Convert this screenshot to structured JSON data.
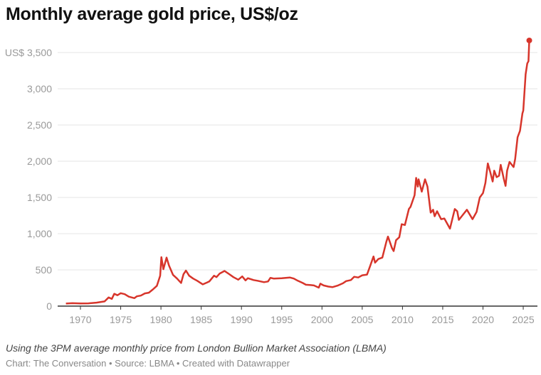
{
  "title": "Monthly average gold price, US$/oz",
  "footer": {
    "note": "Using the 3PM average monthly price from London Bullion Market Association (LBMA)",
    "source": "Chart: The Conversation • Source: LBMA • Created with Datawrapper"
  },
  "colors": {
    "line": "#d7352b",
    "grid": "#e6e6e6",
    "axis": "#333333",
    "tick_text": "#999999"
  },
  "chart_data": {
    "type": "line",
    "title": "Monthly average gold price, US$/oz",
    "xlabel": "",
    "ylabel": "",
    "ylim": [
      0,
      3500
    ],
    "xlim": [
      1968,
      2026
    ],
    "grid": true,
    "y_ticks": [
      0,
      500,
      1000,
      1500,
      2000,
      2500,
      3000,
      3500
    ],
    "y_tick_labels": [
      "0",
      "500",
      "1,000",
      "1,500",
      "2,000",
      "2,500",
      "3,000",
      "US$ 3,500"
    ],
    "x_ticks": [
      1970,
      1975,
      1980,
      1985,
      1990,
      1995,
      2000,
      2005,
      2010,
      2015,
      2020,
      2025
    ],
    "x_tick_labels": [
      "1970",
      "1975",
      "1980",
      "1985",
      "1990",
      "1995",
      "2000",
      "2005",
      "2010",
      "2015",
      "2020",
      "2025"
    ],
    "end_marker": true,
    "points": [
      [
        1968.2,
        35
      ],
      [
        1969,
        40
      ],
      [
        1970,
        36
      ],
      [
        1971,
        38
      ],
      [
        1972,
        48
      ],
      [
        1973,
        65
      ],
      [
        1973.5,
        120
      ],
      [
        1973.9,
        100
      ],
      [
        1974.2,
        170
      ],
      [
        1974.6,
        150
      ],
      [
        1975,
        178
      ],
      [
        1975.5,
        165
      ],
      [
        1976,
        130
      ],
      [
        1976.7,
        110
      ],
      [
        1977,
        135
      ],
      [
        1977.5,
        145
      ],
      [
        1978,
        175
      ],
      [
        1978.5,
        185
      ],
      [
        1979,
        230
      ],
      [
        1979.5,
        280
      ],
      [
        1979.9,
        420
      ],
      [
        1980.05,
        675
      ],
      [
        1980.3,
        510
      ],
      [
        1980.7,
        670
      ],
      [
        1981,
        560
      ],
      [
        1981.5,
        430
      ],
      [
        1982,
        380
      ],
      [
        1982.5,
        320
      ],
      [
        1982.8,
        440
      ],
      [
        1983.1,
        490
      ],
      [
        1983.5,
        420
      ],
      [
        1984,
        380
      ],
      [
        1984.5,
        350
      ],
      [
        1985.2,
        300
      ],
      [
        1985.7,
        325
      ],
      [
        1986,
        340
      ],
      [
        1986.6,
        420
      ],
      [
        1986.9,
        400
      ],
      [
        1987.3,
        450
      ],
      [
        1987.9,
        485
      ],
      [
        1988.5,
        440
      ],
      [
        1989,
        400
      ],
      [
        1989.6,
        365
      ],
      [
        1990.1,
        410
      ],
      [
        1990.5,
        355
      ],
      [
        1990.8,
        385
      ],
      [
        1991.5,
        360
      ],
      [
        1992,
        350
      ],
      [
        1992.8,
        330
      ],
      [
        1993.3,
        340
      ],
      [
        1993.6,
        390
      ],
      [
        1994,
        380
      ],
      [
        1995,
        385
      ],
      [
        1996,
        395
      ],
      [
        1996.5,
        380
      ],
      [
        1997,
        350
      ],
      [
        1997.6,
        320
      ],
      [
        1998,
        295
      ],
      [
        1998.6,
        290
      ],
      [
        1999,
        285
      ],
      [
        1999.6,
        255
      ],
      [
        1999.8,
        310
      ],
      [
        2000.2,
        285
      ],
      [
        2000.8,
        270
      ],
      [
        2001.3,
        262
      ],
      [
        2002,
        285
      ],
      [
        2002.6,
        315
      ],
      [
        2003,
        345
      ],
      [
        2003.6,
        360
      ],
      [
        2004,
        405
      ],
      [
        2004.5,
        395
      ],
      [
        2005,
        425
      ],
      [
        2005.6,
        435
      ],
      [
        2006,
        560
      ],
      [
        2006.4,
        685
      ],
      [
        2006.6,
        600
      ],
      [
        2007,
        650
      ],
      [
        2007.5,
        670
      ],
      [
        2008,
        890
      ],
      [
        2008.2,
        960
      ],
      [
        2008.7,
        800
      ],
      [
        2008.9,
        760
      ],
      [
        2009.2,
        910
      ],
      [
        2009.6,
        950
      ],
      [
        2009.9,
        1130
      ],
      [
        2010.3,
        1120
      ],
      [
        2010.8,
        1340
      ],
      [
        2011,
        1370
      ],
      [
        2011.5,
        1530
      ],
      [
        2011.7,
        1770
      ],
      [
        2011.9,
        1650
      ],
      [
        2012,
        1750
      ],
      [
        2012.4,
        1580
      ],
      [
        2012.8,
        1750
      ],
      [
        2013.1,
        1650
      ],
      [
        2013.5,
        1290
      ],
      [
        2013.8,
        1330
      ],
      [
        2014,
        1240
      ],
      [
        2014.3,
        1310
      ],
      [
        2014.8,
        1200
      ],
      [
        2015.2,
        1210
      ],
      [
        2015.9,
        1070
      ],
      [
        2016.5,
        1340
      ],
      [
        2016.8,
        1310
      ],
      [
        2017,
        1190
      ],
      [
        2017.5,
        1260
      ],
      [
        2018,
        1330
      ],
      [
        2018.7,
        1200
      ],
      [
        2019.2,
        1300
      ],
      [
        2019.6,
        1500
      ],
      [
        2020,
        1560
      ],
      [
        2020.3,
        1700
      ],
      [
        2020.6,
        1970
      ],
      [
        2020.9,
        1850
      ],
      [
        2021.2,
        1720
      ],
      [
        2021.4,
        1870
      ],
      [
        2021.7,
        1780
      ],
      [
        2022,
        1800
      ],
      [
        2022.2,
        1950
      ],
      [
        2022.6,
        1750
      ],
      [
        2022.8,
        1660
      ],
      [
        2023,
        1870
      ],
      [
        2023.3,
        1990
      ],
      [
        2023.8,
        1920
      ],
      [
        2024,
        2030
      ],
      [
        2024.3,
        2330
      ],
      [
        2024.6,
        2420
      ],
      [
        2024.9,
        2660
      ],
      [
        2025,
        2700
      ],
      [
        2025.3,
        3200
      ],
      [
        2025.5,
        3350
      ],
      [
        2025.65,
        3380
      ],
      [
        2025.75,
        3667
      ]
    ]
  }
}
